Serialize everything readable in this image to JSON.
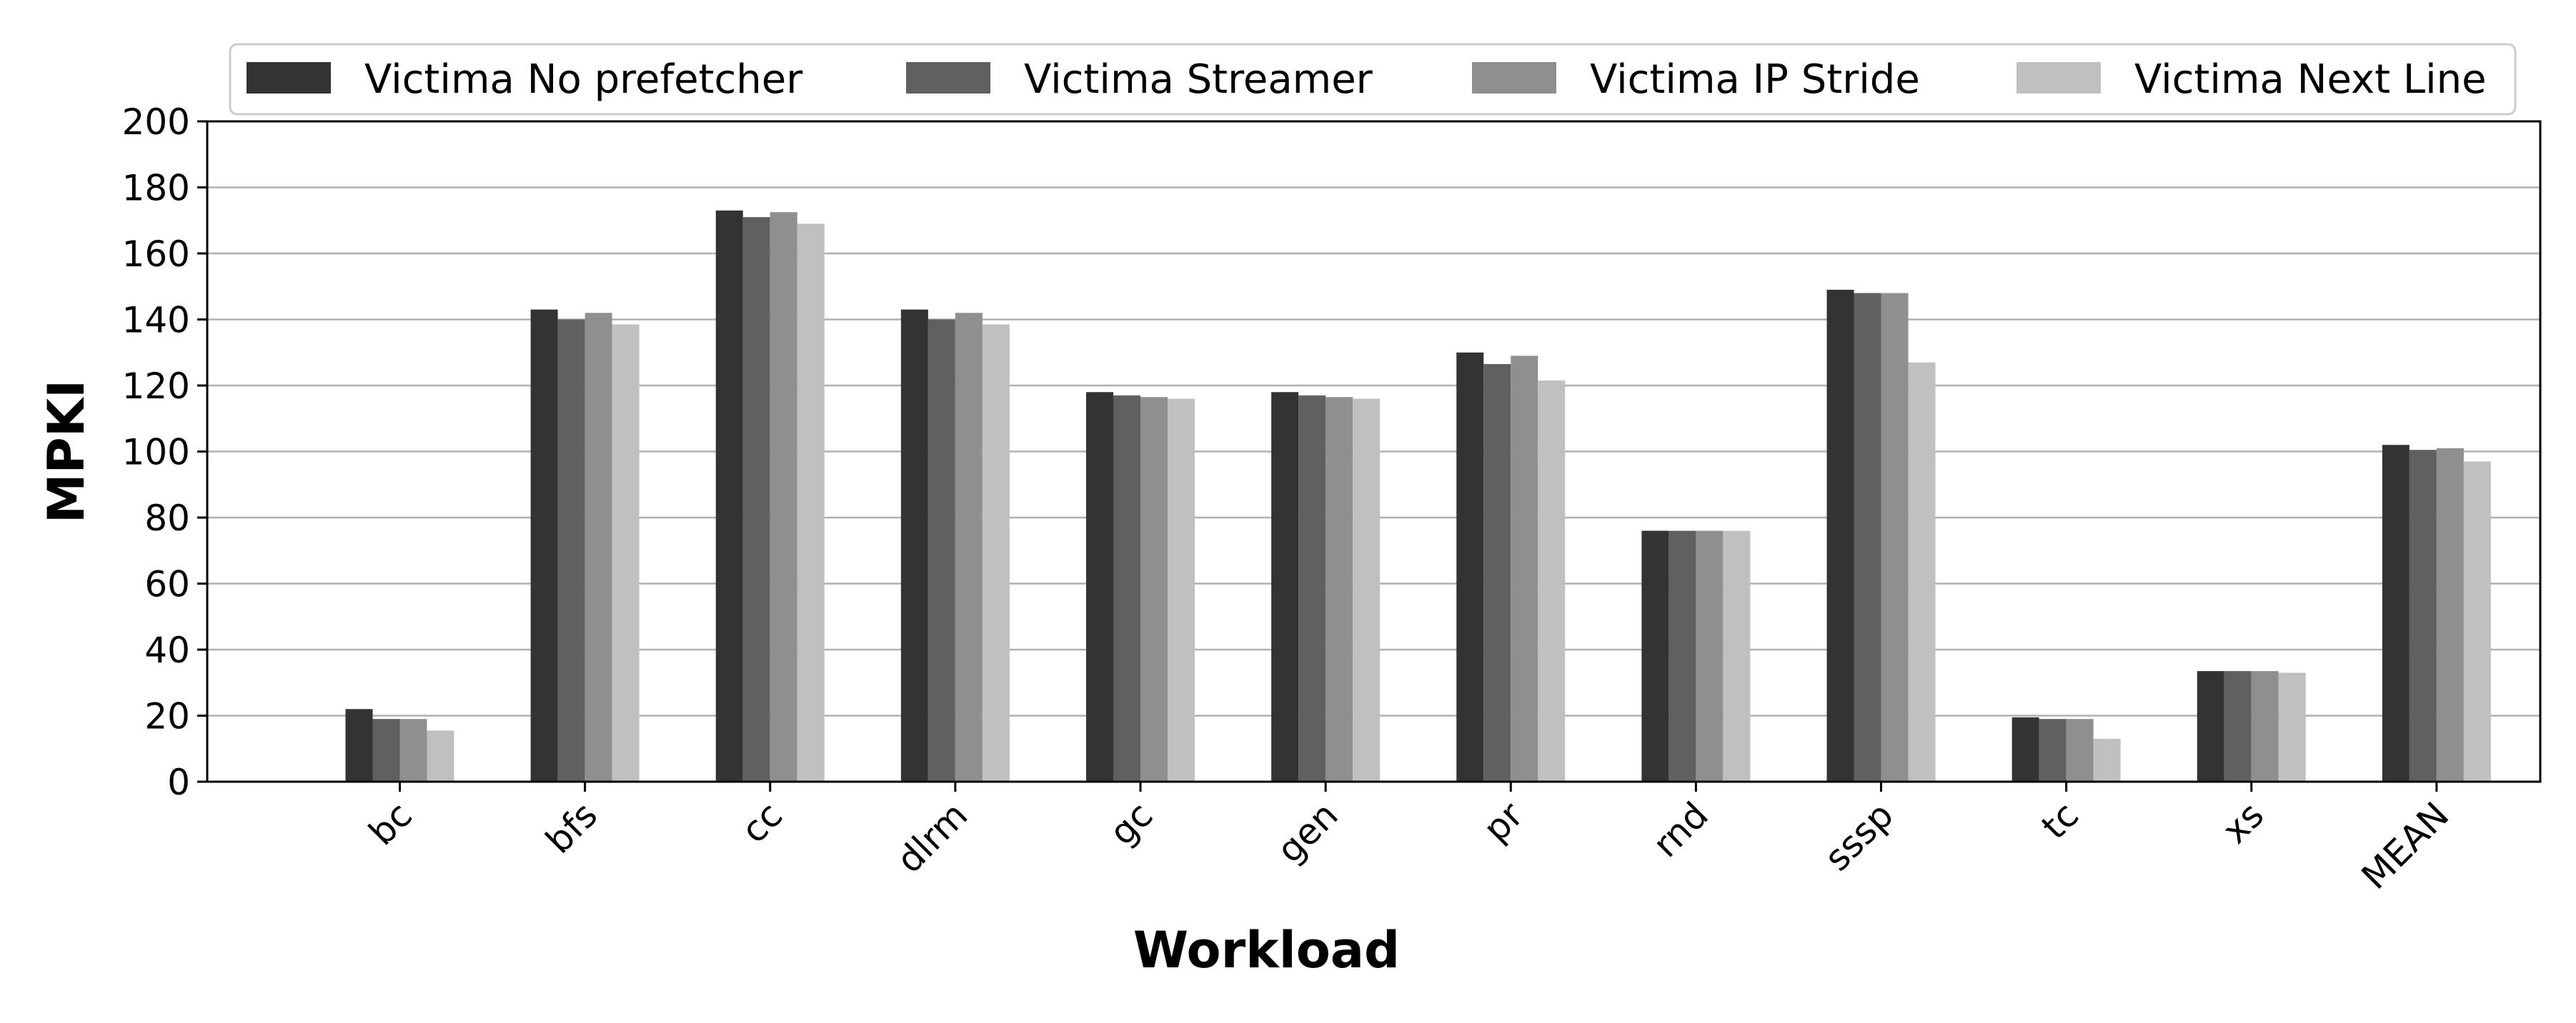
{
  "chart_data": {
    "type": "bar",
    "title": "",
    "xlabel": "Workload",
    "ylabel": "MPKI",
    "ylim": [
      0,
      200
    ],
    "yticks": [
      0,
      20,
      40,
      60,
      80,
      100,
      120,
      140,
      160,
      180,
      200
    ],
    "grid": "horizontal",
    "legend_position": "top",
    "categories": [
      "bc",
      "bfs",
      "cc",
      "dlrm",
      "gc",
      "gen",
      "pr",
      "rnd",
      "sssp",
      "tc",
      "xs",
      "MEAN"
    ],
    "series": [
      {
        "name": "Victima No prefetcher",
        "color": "#333333",
        "values": [
          22,
          143,
          173,
          143,
          118,
          118,
          130,
          76,
          149,
          19.5,
          33.5,
          102
        ]
      },
      {
        "name": "Victima Streamer",
        "color": "#606060",
        "values": [
          19,
          140,
          171,
          140,
          117,
          117,
          126.5,
          76,
          148,
          19,
          33.5,
          100.5
        ]
      },
      {
        "name": "Victima IP Stride",
        "color": "#8f8f8f",
        "values": [
          19,
          142,
          172.5,
          142,
          116.5,
          116.5,
          129,
          76,
          148,
          19,
          33.5,
          101
        ]
      },
      {
        "name": "Victima Next Line",
        "color": "#c0c0c0",
        "values": [
          15.5,
          138.5,
          169,
          138.5,
          116,
          116,
          121.5,
          76,
          127,
          13,
          33,
          97
        ]
      }
    ]
  }
}
